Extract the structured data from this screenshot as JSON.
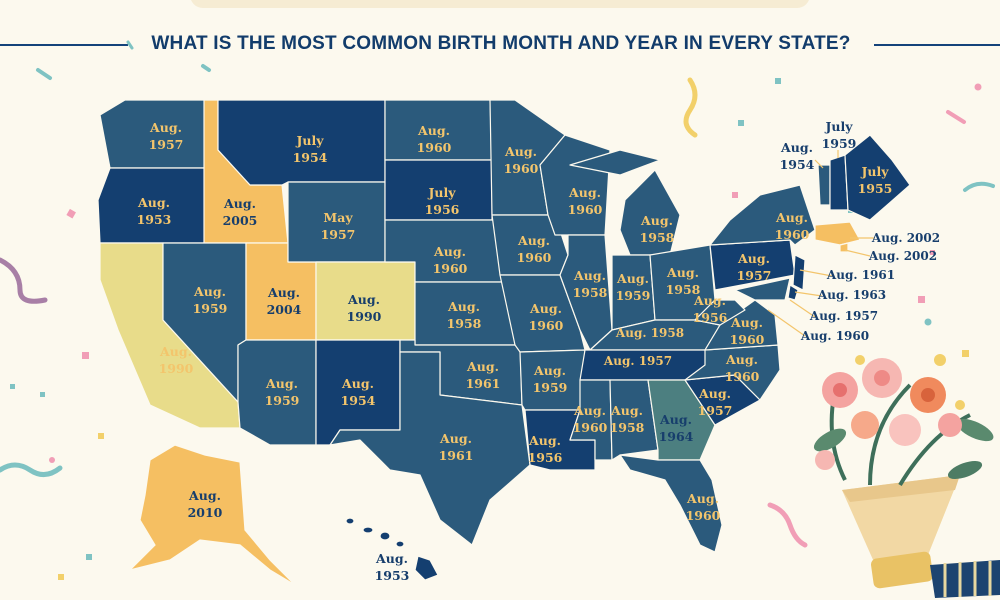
{
  "title": "WHAT IS THE MOST COMMON BIRTH MONTH AND YEAR IN EVERY STATE?",
  "colors": {
    "background": "#fcf9ee",
    "navy": "#143f70",
    "slate": "#2b5a7c",
    "teal_gray": "#4c7f80",
    "gold": "#f5bf62",
    "pale_yellow": "#e8dc8a",
    "label_gold": "#f3c56c",
    "label_navy": "#173e6c"
  },
  "states": [
    {
      "state": "Washington",
      "month": "Aug.",
      "year": "1957"
    },
    {
      "state": "Oregon",
      "month": "Aug.",
      "year": "1953"
    },
    {
      "state": "California",
      "month": "Aug.",
      "year": "1990"
    },
    {
      "state": "Idaho",
      "month": "Aug.",
      "year": "2005"
    },
    {
      "state": "Nevada",
      "month": "Aug.",
      "year": "1959"
    },
    {
      "state": "Montana",
      "month": "July",
      "year": "1954"
    },
    {
      "state": "Wyoming",
      "month": "May",
      "year": "1957"
    },
    {
      "state": "Utah",
      "month": "Aug.",
      "year": "2004"
    },
    {
      "state": "Colorado",
      "month": "Aug.",
      "year": "1990"
    },
    {
      "state": "Arizona",
      "month": "Aug.",
      "year": "1959"
    },
    {
      "state": "New Mexico",
      "month": "Aug.",
      "year": "1954"
    },
    {
      "state": "North Dakota",
      "month": "Aug.",
      "year": "1960"
    },
    {
      "state": "South Dakota",
      "month": "July",
      "year": "1956"
    },
    {
      "state": "Nebraska",
      "month": "Aug.",
      "year": "1960"
    },
    {
      "state": "Kansas",
      "month": "Aug.",
      "year": "1958"
    },
    {
      "state": "Oklahoma",
      "month": "Aug.",
      "year": "1961"
    },
    {
      "state": "Texas",
      "month": "Aug.",
      "year": "1961"
    },
    {
      "state": "Minnesota",
      "month": "Aug.",
      "year": "1960"
    },
    {
      "state": "Iowa",
      "month": "Aug.",
      "year": "1960"
    },
    {
      "state": "Missouri",
      "month": "Aug.",
      "year": "1960"
    },
    {
      "state": "Arkansas",
      "month": "Aug.",
      "year": "1959"
    },
    {
      "state": "Louisiana",
      "month": "Aug.",
      "year": "1956"
    },
    {
      "state": "Wisconsin",
      "month": "Aug.",
      "year": "1960"
    },
    {
      "state": "Illinois",
      "month": "Aug.",
      "year": "1958"
    },
    {
      "state": "Michigan",
      "month": "Aug.",
      "year": "1958"
    },
    {
      "state": "Indiana",
      "month": "Aug.",
      "year": "1959"
    },
    {
      "state": "Ohio",
      "month": "Aug.",
      "year": "1958"
    },
    {
      "state": "Kentucky",
      "month": "Aug.",
      "year": "1958"
    },
    {
      "state": "Tennessee",
      "month": "Aug.",
      "year": "1957"
    },
    {
      "state": "Mississippi",
      "month": "Aug.",
      "year": "1960"
    },
    {
      "state": "Alabama",
      "month": "Aug.",
      "year": "1958"
    },
    {
      "state": "Georgia",
      "month": "Aug.",
      "year": "1964"
    },
    {
      "state": "Florida",
      "month": "Aug.",
      "year": "1960"
    },
    {
      "state": "South Carolina",
      "month": "Aug.",
      "year": "1957"
    },
    {
      "state": "North Carolina",
      "month": "Aug.",
      "year": "1960"
    },
    {
      "state": "Virginia",
      "month": "Aug.",
      "year": "1960"
    },
    {
      "state": "West Virginia",
      "month": "Aug.",
      "year": "1956"
    },
    {
      "state": "Pennsylvania",
      "month": "Aug.",
      "year": "1957"
    },
    {
      "state": "New York",
      "month": "Aug.",
      "year": "1960"
    },
    {
      "state": "Vermont",
      "month": "Aug.",
      "year": "1954"
    },
    {
      "state": "New Hampshire",
      "month": "July",
      "year": "1959"
    },
    {
      "state": "Maine",
      "month": "July",
      "year": "1955"
    },
    {
      "state": "Massachusetts",
      "month": "Aug.",
      "year": "2002"
    },
    {
      "state": "Rhode Island",
      "month": "Aug.",
      "year": "2002"
    },
    {
      "state": "New Jersey",
      "month": "Aug.",
      "year": "1961"
    },
    {
      "state": "Delaware",
      "month": "Aug.",
      "year": "1963"
    },
    {
      "state": "Maryland",
      "month": "Aug.",
      "year": "1957"
    },
    {
      "state": "District of Columbia",
      "month": "Aug.",
      "year": "1960"
    },
    {
      "state": "Alaska",
      "month": "Aug.",
      "year": "2010"
    },
    {
      "state": "Hawaii",
      "month": "Aug.",
      "year": "1953"
    }
  ]
}
